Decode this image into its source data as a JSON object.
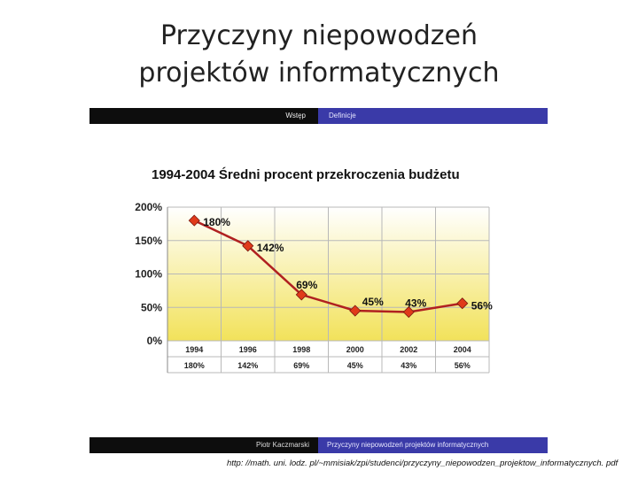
{
  "slide": {
    "title_line1": "Przyczyny niepowodzeń",
    "title_line2": "projektów informatycznych",
    "source_url": "http: //math. uni. lodz. pl/~mmisiak/zpi/studenci/przyczyny_niepowodzen_projektow_informatycznych. pdf"
  },
  "header": {
    "left": "Wstęp",
    "right": "Definicje"
  },
  "footer": {
    "left": "Piotr Kaczmarski",
    "right": "Przyczyny niepowodzeń projektów informatycznych"
  },
  "colors": {
    "line": "#b02020",
    "marker": "#e03a1a",
    "grid": "#b8b8b8",
    "bar_dark": "#0d0d0d",
    "bar_blue": "#3a3aa8"
  },
  "chart_data": {
    "type": "line",
    "title": "1994-2004 Średni procent przekroczenia budżetu",
    "categories": [
      "1994",
      "1996",
      "1998",
      "2000",
      "2002",
      "2004"
    ],
    "values": [
      180,
      142,
      69,
      45,
      43,
      56
    ],
    "data_labels": [
      "180%",
      "142%",
      "69%",
      "45%",
      "43%",
      "56%"
    ],
    "table_row": [
      "180%",
      "142%",
      "69%",
      "45%",
      "43%",
      "56%"
    ],
    "y_ticks": [
      0,
      50,
      100,
      150,
      200
    ],
    "y_tick_labels": [
      "0%",
      "50%",
      "100%",
      "150%",
      "200%"
    ],
    "ylim": [
      0,
      200
    ],
    "grid": true
  }
}
